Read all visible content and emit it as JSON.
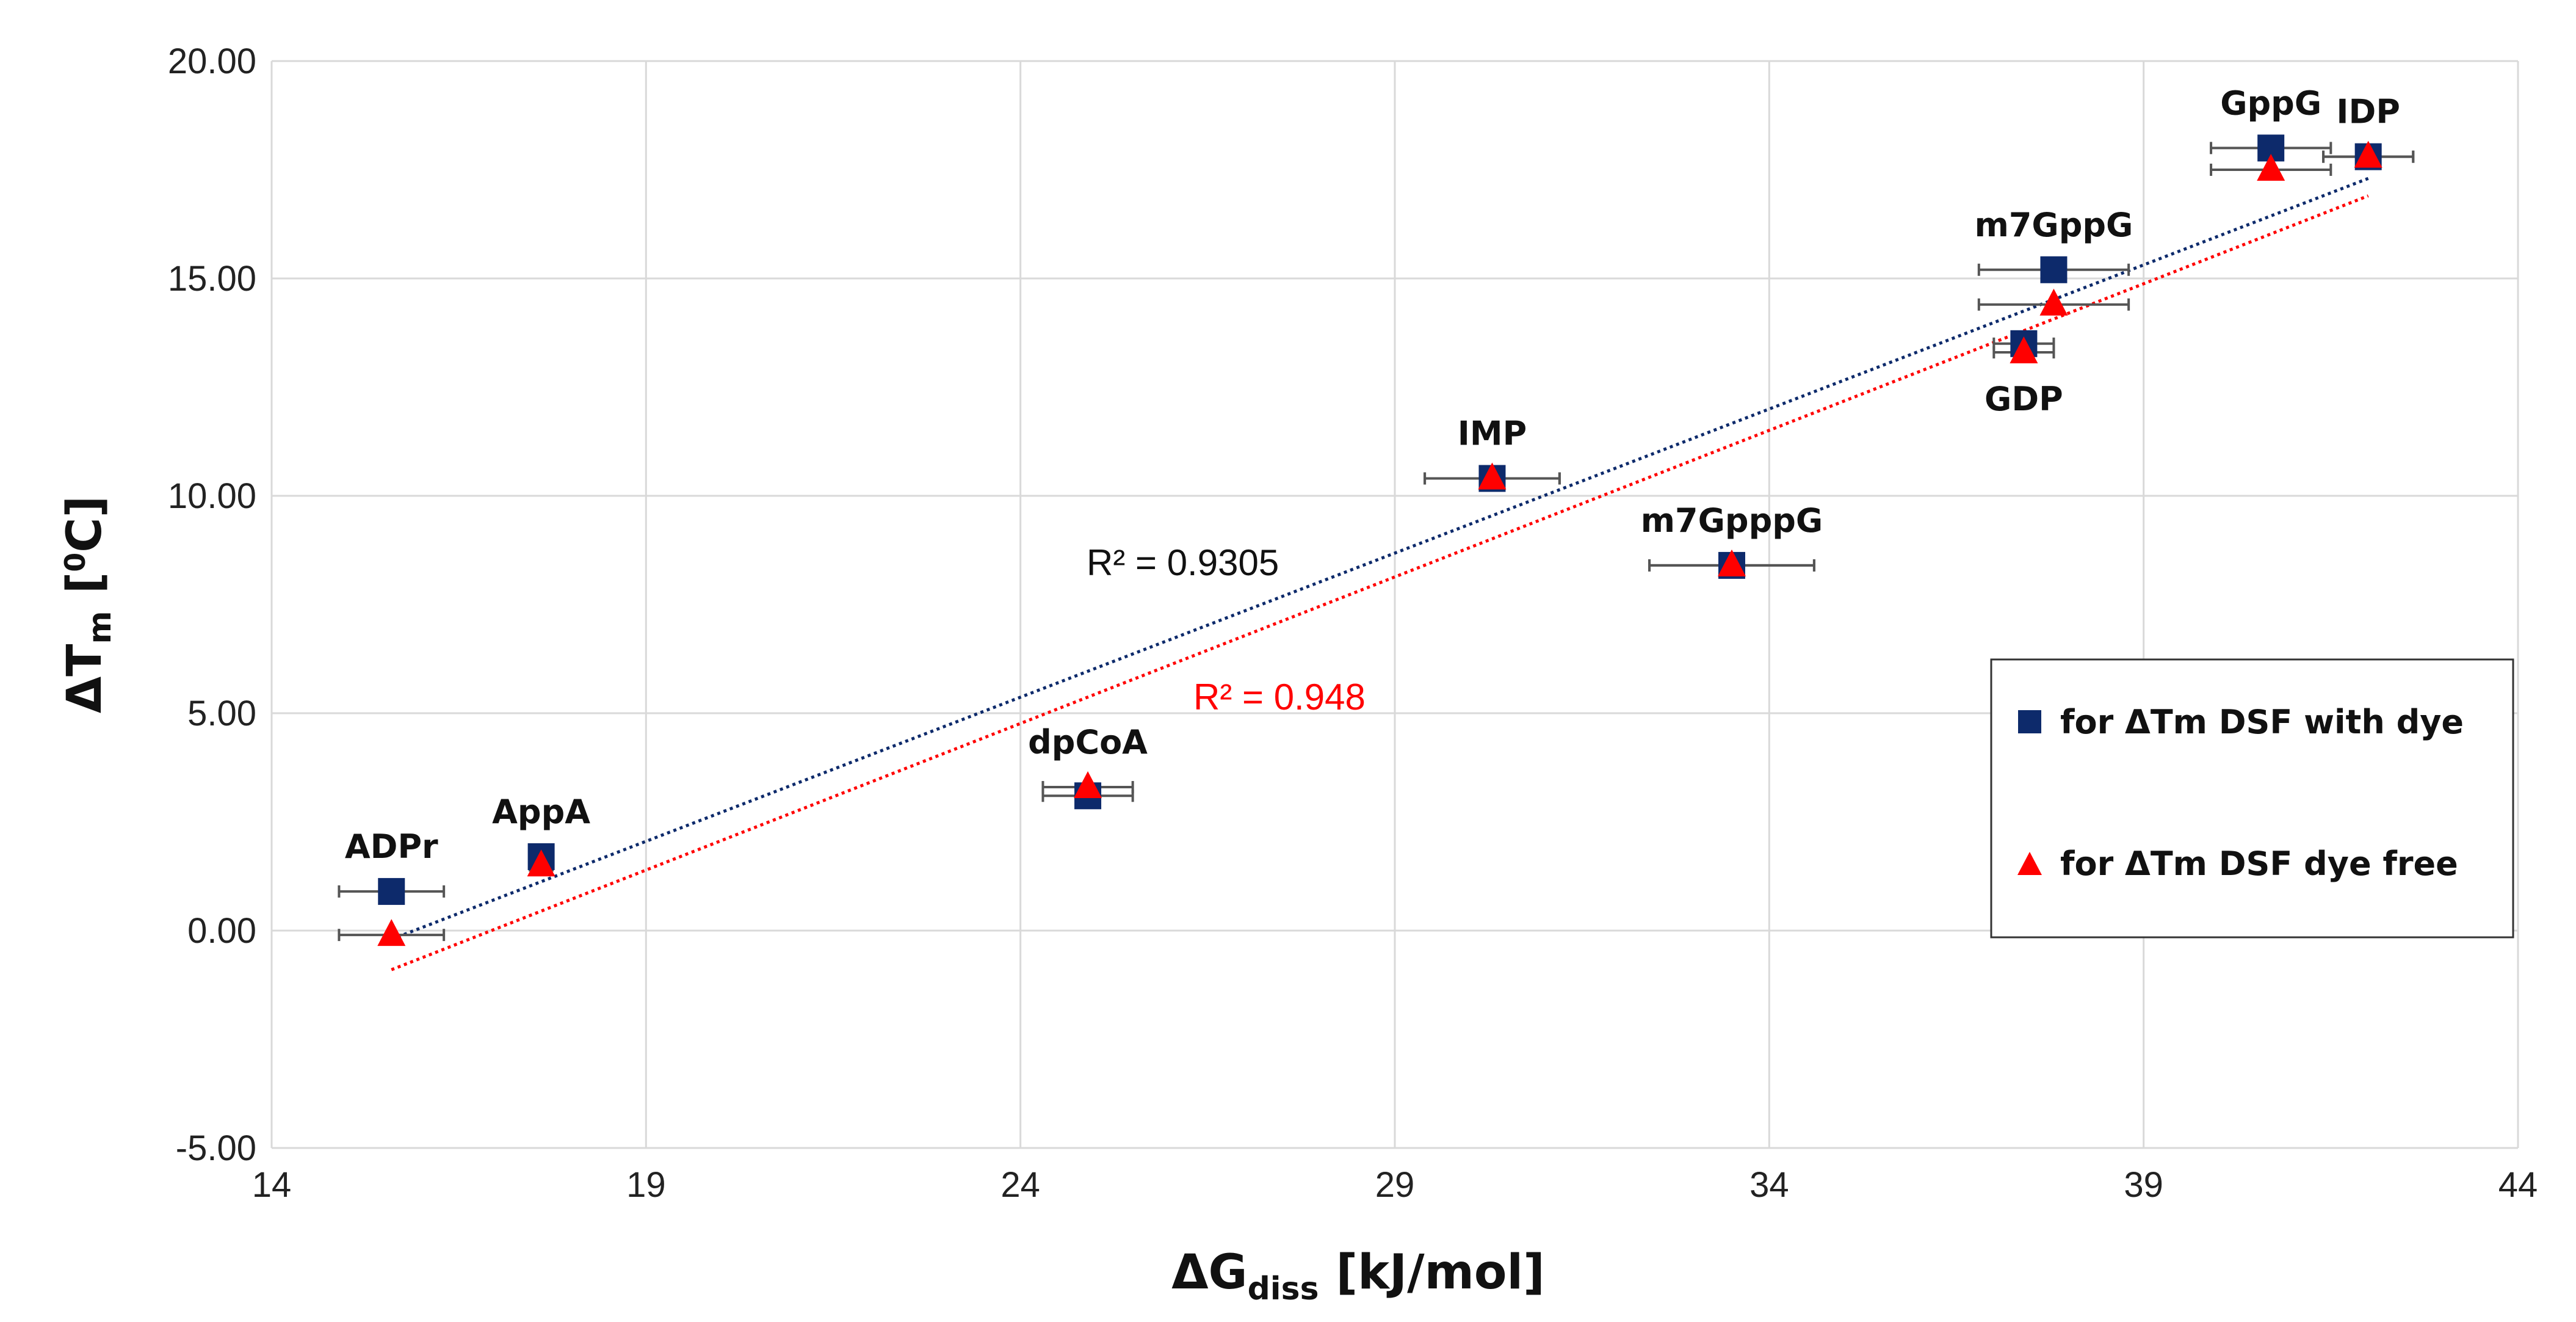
{
  "chart_data": {
    "type": "scatter",
    "x_label": {
      "base": "ΔG",
      "sub": "diss",
      "unit": "[kJ/mol]"
    },
    "y_label": {
      "base": "ΔT",
      "sub": "m",
      "unit_open": "[",
      "sup": "0",
      "unit_close": "C]"
    },
    "xlim": [
      14,
      44
    ],
    "ylim": [
      -5,
      20
    ],
    "x_ticks": [
      14,
      19,
      24,
      29,
      34,
      39,
      44
    ],
    "y_ticks": [
      -5,
      0,
      5,
      10,
      15,
      20
    ],
    "x_tick_labels": [
      "14",
      "19",
      "24",
      "29",
      "34",
      "39",
      "44"
    ],
    "y_tick_labels": [
      "-5.00",
      "0.00",
      "5.00",
      "10.00",
      "15.00",
      "20.00"
    ],
    "grid": true,
    "legend_position": "right",
    "points": [
      {
        "label": "ADPr",
        "x": 15.6,
        "y_dye": 0.9,
        "y_free": -0.1,
        "xerr": 0.7,
        "label_pos": "above"
      },
      {
        "label": "AppA",
        "x": 17.6,
        "y_dye": 1.7,
        "y_free": 1.5,
        "xerr": 0.15,
        "label_pos": "above"
      },
      {
        "label": "dpCoA",
        "x": 24.9,
        "y_dye": 3.1,
        "y_free": 3.3,
        "xerr": 0.6,
        "label_pos": "above"
      },
      {
        "label": "IMP",
        "x": 30.3,
        "y_dye": 10.4,
        "y_free": 10.4,
        "xerr": 0.9,
        "label_pos": "above"
      },
      {
        "label": "m7GpppG",
        "x": 33.5,
        "y_dye": 8.4,
        "y_free": 8.4,
        "xerr": 1.1,
        "label_pos": "above"
      },
      {
        "label": "GDP",
        "x": 37.4,
        "y_dye": 13.5,
        "y_free": 13.3,
        "xerr": 0.4,
        "label_pos": "below"
      },
      {
        "label": "m7GppG",
        "x": 37.8,
        "y_dye": 15.2,
        "y_free": 14.4,
        "xerr": 1.0,
        "label_pos": "above"
      },
      {
        "label": "GppG",
        "x": 40.7,
        "y_dye": 18.0,
        "y_free": 17.5,
        "xerr": 0.8,
        "label_pos": "above"
      },
      {
        "label": "IDP",
        "x": 42.0,
        "y_dye": 17.8,
        "y_free": 17.8,
        "xerr": 0.6,
        "label_pos": "above"
      }
    ],
    "series": [
      {
        "name": "for ΔTm DSF with dye",
        "marker": "square",
        "color": "#0d2a6b",
        "trendline": {
          "x": [
            15.6,
            42.0
          ],
          "y": [
            -0.2,
            17.3
          ],
          "r2_text": "R² = 0.9305"
        }
      },
      {
        "name": "for ΔTm DSF dye free",
        "marker": "triangle",
        "color": "#ff0000",
        "trendline": {
          "x": [
            15.6,
            42.0
          ],
          "y": [
            -0.9,
            16.9
          ],
          "r2_text": "R² = 0.948"
        }
      }
    ]
  }
}
